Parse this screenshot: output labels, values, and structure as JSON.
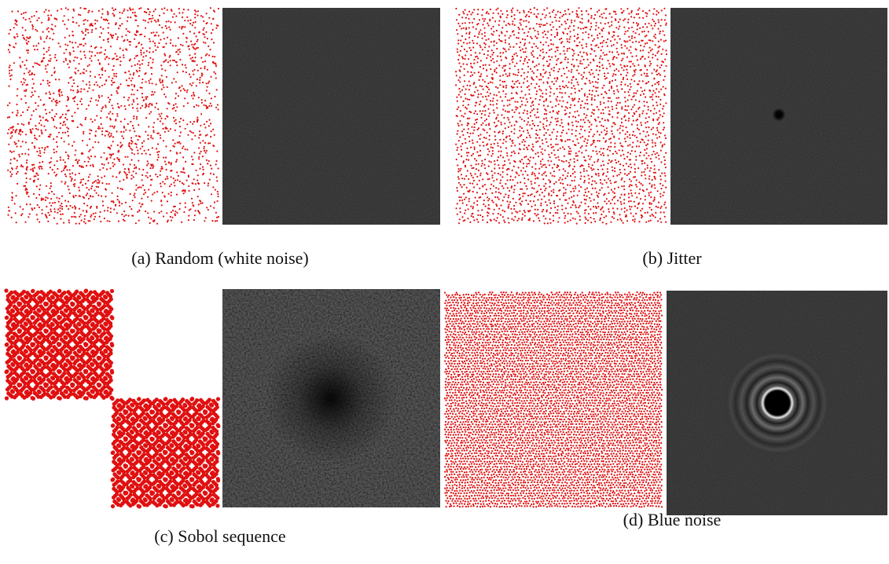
{
  "figure": {
    "panels": [
      {
        "caption": "(a) Random (white noise)"
      },
      {
        "caption": "(b) Jitter"
      },
      {
        "caption": "(c) Sobol sequence"
      },
      {
        "caption": "(d) Blue noise"
      }
    ]
  }
}
